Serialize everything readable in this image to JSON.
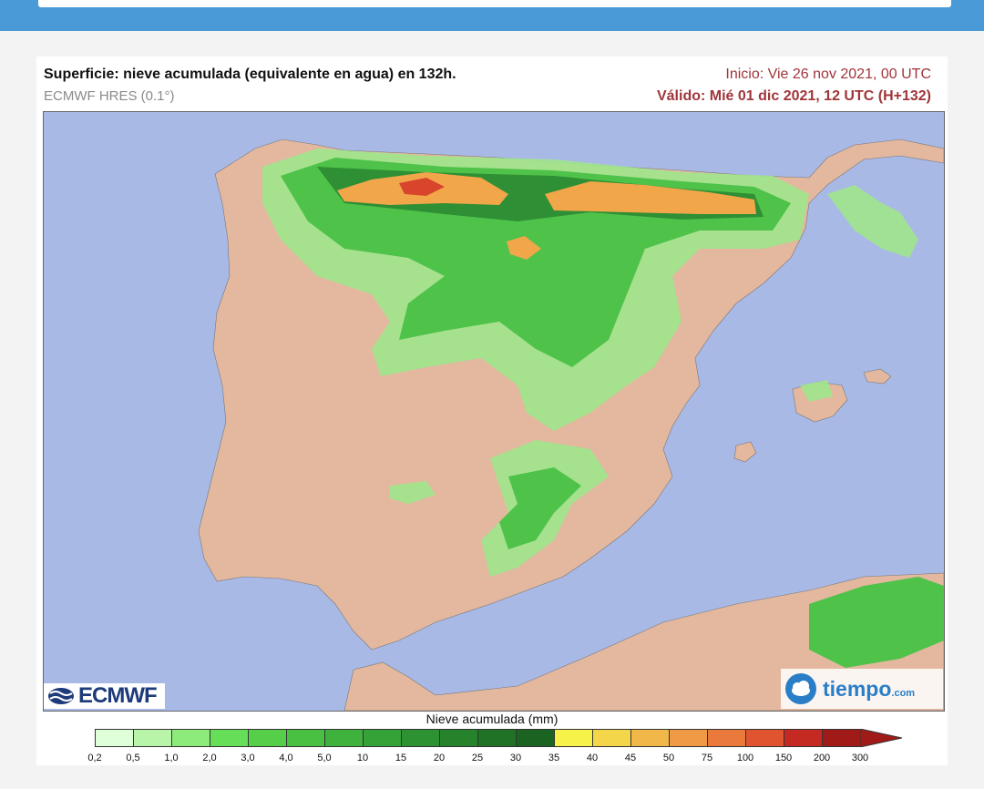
{
  "header": {
    "title": "Superficie: nieve acumulada (equivalente en agua) en 132h.",
    "model": "ECMWF HRES (0.1°)",
    "init": "Inicio: Vie 26 nov 2021, 00 UTC",
    "valid": "Válido: Mié 01 dic 2021, 12 UTC (H+132)"
  },
  "logos": {
    "ecmwf": "ECMWF",
    "tiempo": "tiempo",
    "tiempo_domain": ".com"
  },
  "legend": {
    "title": "Nieve acumulada (mm)",
    "labels": [
      "0,2",
      "0,5",
      "1,0",
      "2,0",
      "3,0",
      "4,0",
      "5,0",
      "10",
      "15",
      "20",
      "25",
      "30",
      "35",
      "40",
      "45",
      "50",
      "75",
      "100",
      "150",
      "200",
      "300"
    ],
    "colors": [
      "#dfffd8",
      "#b9f5a8",
      "#8ceb7a",
      "#66de58",
      "#55cf4a",
      "#4ac043",
      "#3fb13d",
      "#35a237",
      "#2c9232",
      "#26832c",
      "#207326",
      "#1b6320",
      "#f7f24a",
      "#f4d64a",
      "#f1b849",
      "#ef9a45",
      "#e97a3c",
      "#e05530",
      "#c42a22",
      "#a01a17"
    ]
  },
  "map": {
    "colors": {
      "sea": "#a9b9e6",
      "land": "#e3b89f",
      "snow_light": "#9ee68c",
      "snow_mid": "#4fc24a",
      "snow_dark": "#2e8f34",
      "snow_heavy": "#f1a64a",
      "snow_extreme": "#d9442c"
    }
  }
}
